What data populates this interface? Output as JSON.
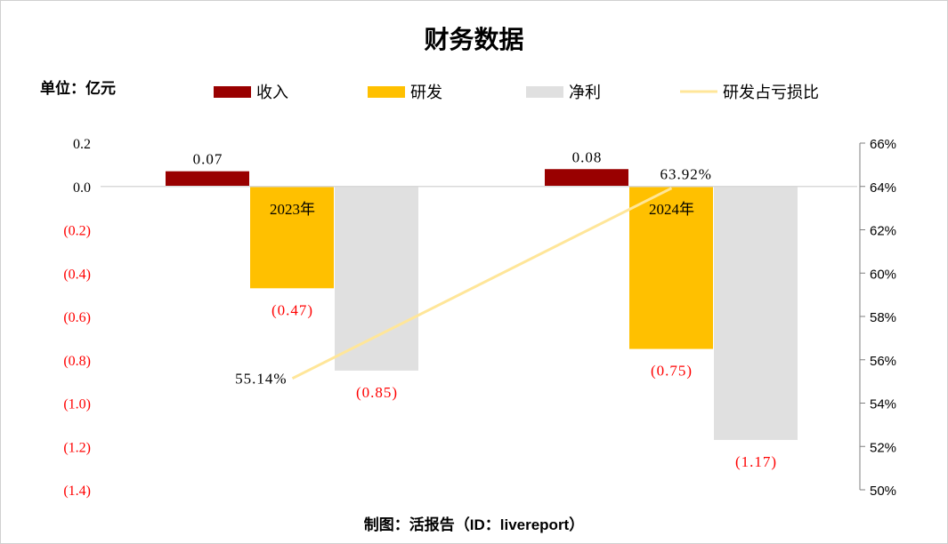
{
  "chart_data": {
    "type": "bar",
    "title": "财务数据",
    "unit": "单位：亿元",
    "footer": "制图：活报告（ID：livereport）",
    "categories": [
      "2023年",
      "2024年"
    ],
    "series": [
      {
        "name": "收入",
        "kind": "bar",
        "axis": "left",
        "color": "#990000",
        "values": [
          0.07,
          0.08
        ],
        "labels": [
          "0.07",
          "0.08"
        ]
      },
      {
        "name": "研发",
        "kind": "bar",
        "axis": "left",
        "color": "#FFC000",
        "values": [
          -0.47,
          -0.75
        ],
        "labels": [
          "(0.47)",
          "(0.75)"
        ]
      },
      {
        "name": "净利",
        "kind": "bar",
        "axis": "left",
        "color": "#E0E0E0",
        "values": [
          -0.85,
          -1.17
        ],
        "labels": [
          "(0.85)",
          "(1.17)"
        ]
      },
      {
        "name": "研发占亏损比",
        "kind": "line",
        "axis": "right",
        "color": "#FFE699",
        "values": [
          55.14,
          63.92
        ],
        "labels": [
          "55.14%",
          "63.92%"
        ]
      }
    ],
    "y_left": {
      "lim": [
        -1.4,
        0.2
      ],
      "ticks": [
        0.2,
        0.0,
        -0.2,
        -0.4,
        -0.6,
        -0.8,
        -1.0,
        -1.2,
        -1.4
      ],
      "tick_labels": [
        "0.2",
        "0.0",
        "(0.2)",
        "(0.4)",
        "(0.6)",
        "(0.8)",
        "(1.0)",
        "(1.2)",
        "(1.4)"
      ],
      "negative_color": "#FF0000"
    },
    "y_right": {
      "lim": [
        50,
        66
      ],
      "ticks": [
        66,
        64,
        62,
        60,
        58,
        56,
        54,
        52,
        50
      ],
      "tick_labels": [
        "66%",
        "64%",
        "62%",
        "60%",
        "58%",
        "56%",
        "54%",
        "52%",
        "50%"
      ]
    },
    "legend_position": "top",
    "grid": false
  }
}
